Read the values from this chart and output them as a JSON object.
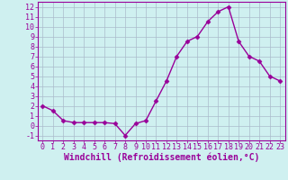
{
  "x_data": [
    0,
    1,
    2,
    3,
    4,
    5,
    6,
    7,
    8,
    9,
    10,
    11,
    12,
    13,
    14,
    15,
    16,
    17,
    18,
    19,
    20,
    21,
    22,
    23
  ],
  "y_data": [
    2,
    1.5,
    0.5,
    0.3,
    0.3,
    0.3,
    0.3,
    0.2,
    -1,
    0.2,
    0.5,
    2.5,
    4.5,
    7,
    8.5,
    9,
    10.5,
    11.5,
    12,
    8.5,
    7,
    6.5,
    5,
    4.5
  ],
  "line_color": "#990099",
  "marker": "D",
  "marker_size": 2.5,
  "bg_color": "#cff0f0",
  "grid_color": "#aabbcc",
  "xlabel": "Windchill (Refroidissement éolien,°C)",
  "xlim": [
    -0.5,
    23.5
  ],
  "ylim": [
    -1.5,
    12.5
  ],
  "yticks": [
    -1,
    0,
    1,
    2,
    3,
    4,
    5,
    6,
    7,
    8,
    9,
    10,
    11,
    12
  ],
  "xticks": [
    0,
    1,
    2,
    3,
    4,
    5,
    6,
    7,
    8,
    9,
    10,
    11,
    12,
    13,
    14,
    15,
    16,
    17,
    18,
    19,
    20,
    21,
    22,
    23
  ],
  "tick_fontsize": 6.0,
  "xlabel_fontsize": 7.0,
  "border_color": "#990099",
  "linewidth": 1.0
}
